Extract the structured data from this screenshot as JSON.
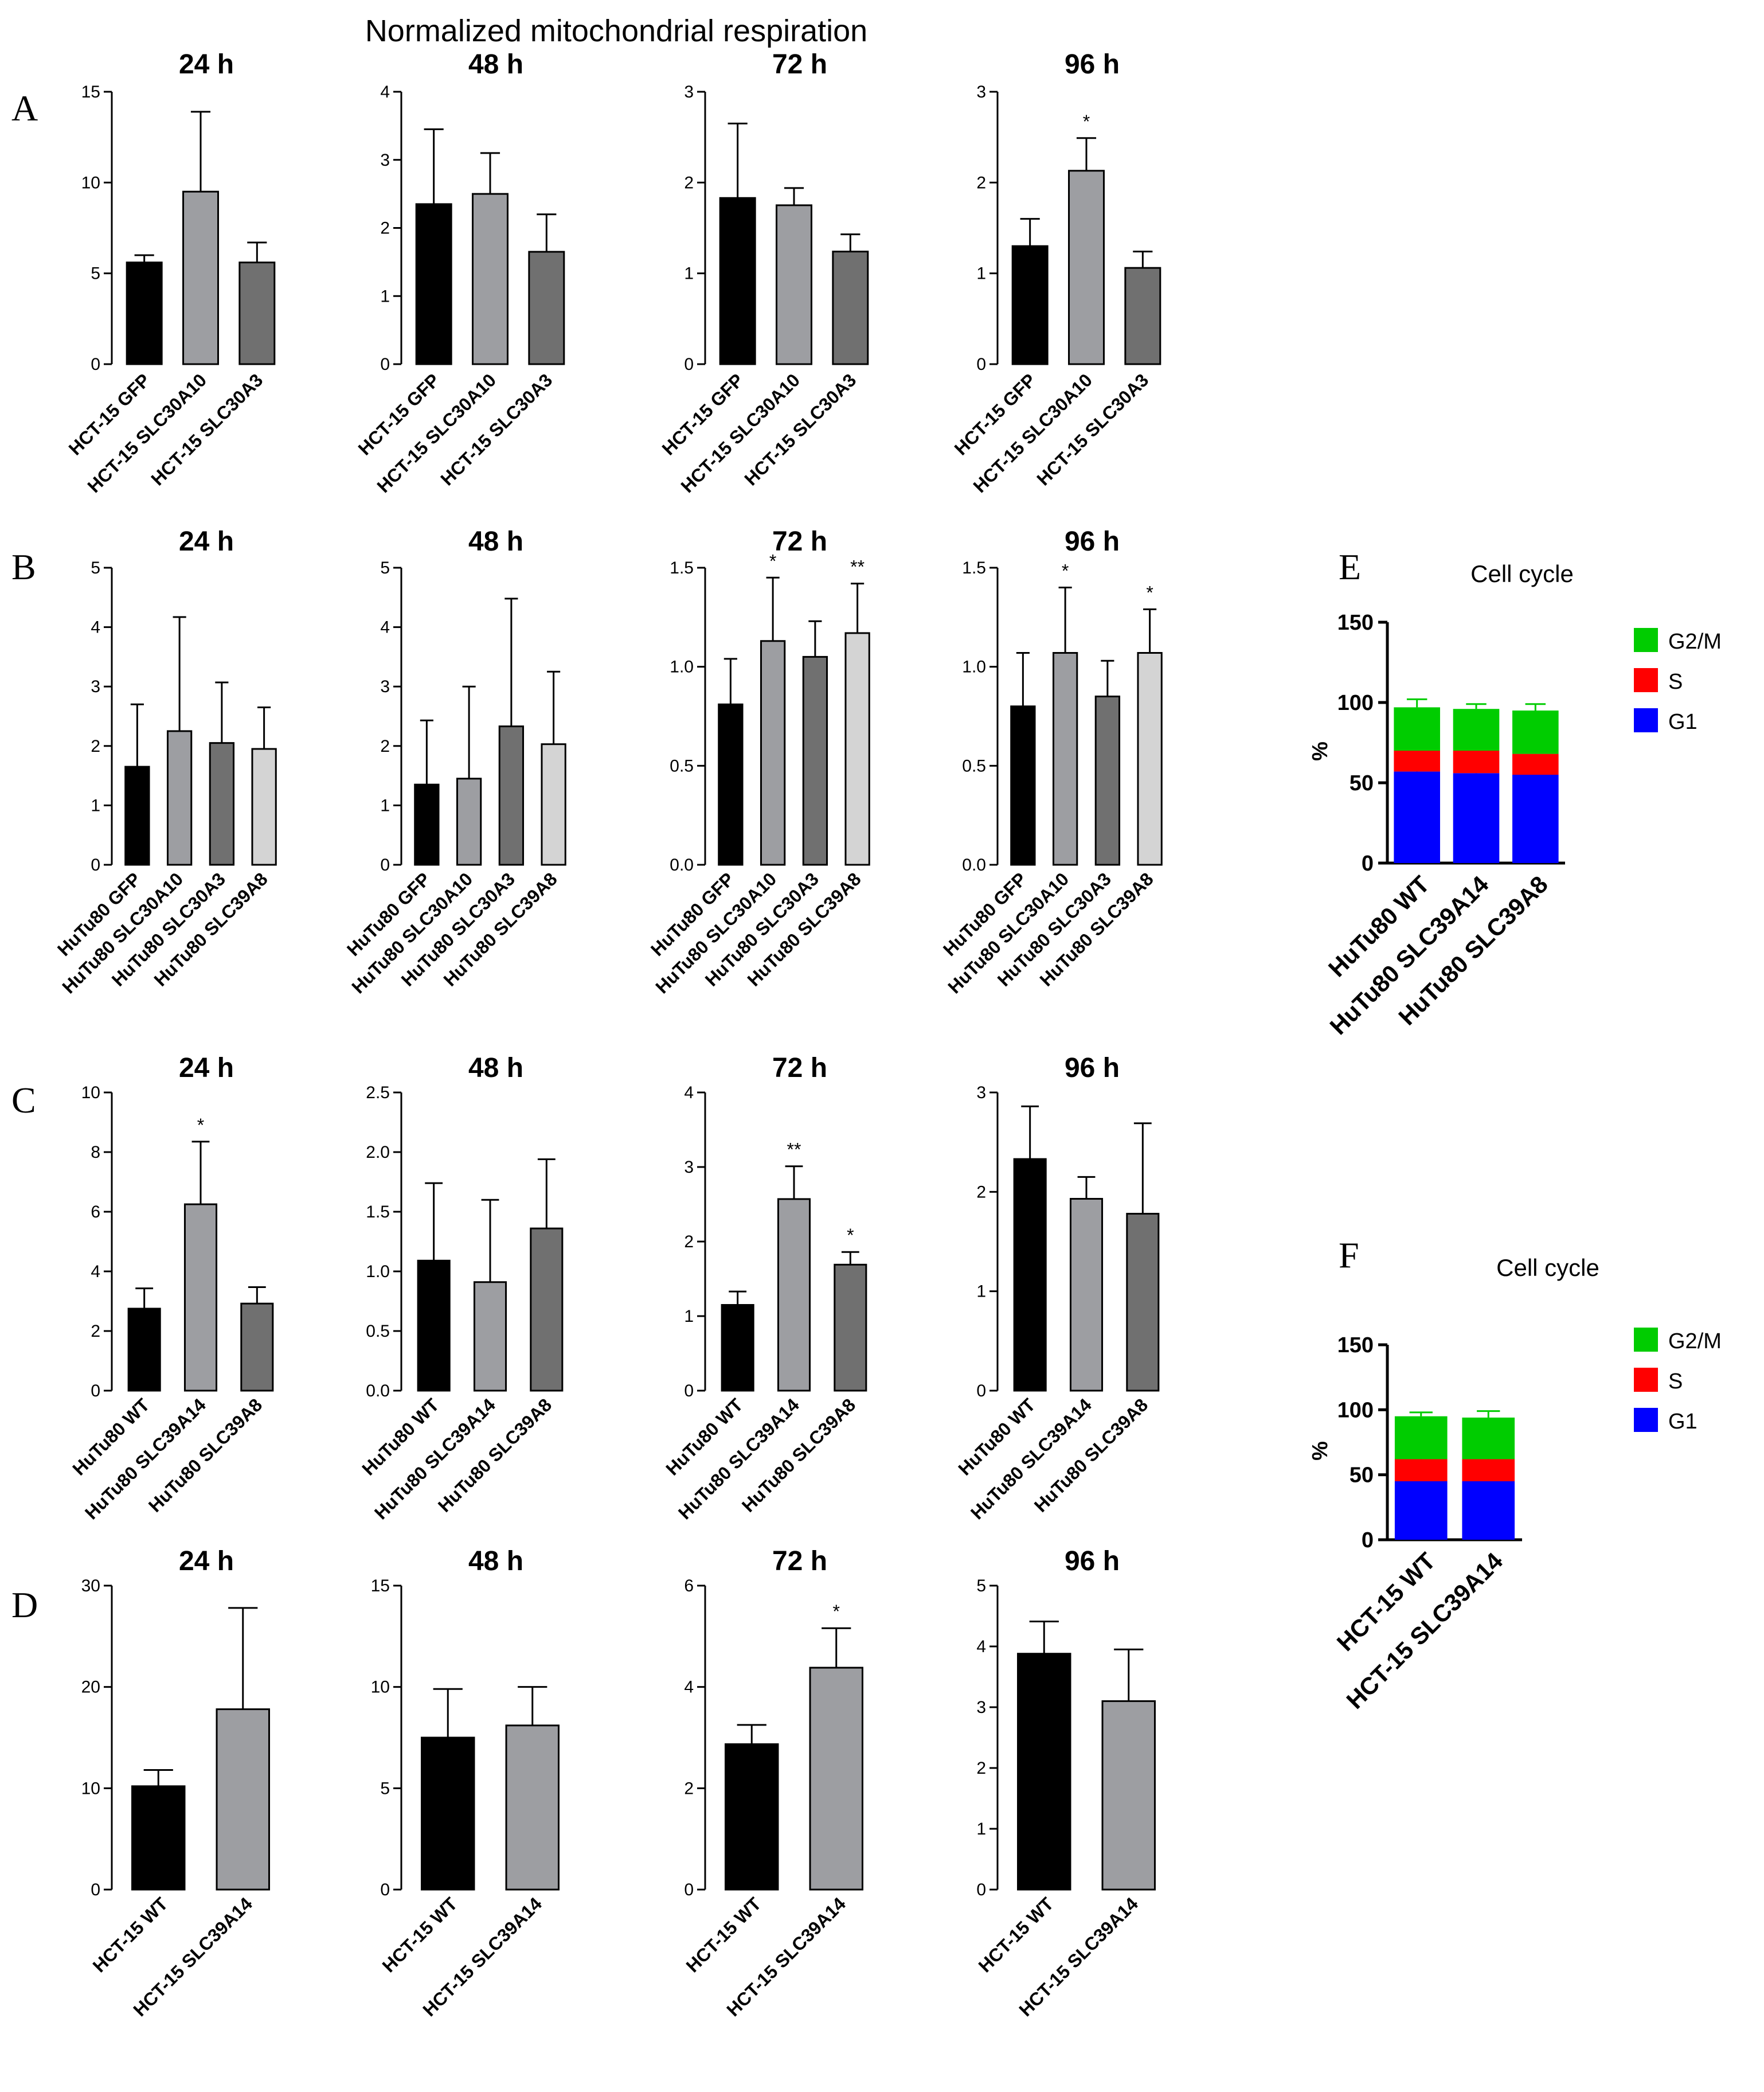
{
  "title": "Normalized mitochondrial respiration",
  "panels": [
    {
      "letter": "A",
      "x": 20,
      "y": 210
    },
    {
      "letter": "B",
      "x": 20,
      "y": 1010
    },
    {
      "letter": "C",
      "x": 20,
      "y": 1940
    },
    {
      "letter": "D",
      "x": 20,
      "y": 2820
    },
    {
      "letter": "E",
      "x": 2335,
      "y": 1010
    },
    {
      "letter": "F",
      "x": 2335,
      "y": 2210
    }
  ],
  "colors": {
    "black": "#000000",
    "gray": "#9d9ea2",
    "darkgray": "#707070",
    "lightgray": "#d4d4d4",
    "g2m": "#00cc00",
    "s": "#ff0000",
    "g1": "#0000ff"
  },
  "chart_data": [
    {
      "id": "A24",
      "type": "bar",
      "title": "24 h",
      "ylim": [
        0,
        15
      ],
      "yticks": [
        0,
        5,
        10,
        15
      ],
      "categories": [
        "HCT-15 GFP",
        "HCT-15 SLC30A10",
        "HCT-15 SLC30A3"
      ],
      "values": [
        5.6,
        9.5,
        5.6
      ],
      "errors": [
        0.4,
        4.4,
        1.1
      ],
      "sig": [
        "",
        "",
        ""
      ],
      "colors": [
        "black",
        "gray",
        "darkgray"
      ]
    },
    {
      "id": "A48",
      "type": "bar",
      "title": "48 h",
      "ylim": [
        0,
        4
      ],
      "yticks": [
        0,
        1,
        2,
        3,
        4
      ],
      "categories": [
        "HCT-15 GFP",
        "HCT-15 SLC30A10",
        "HCT-15 SLC30A3"
      ],
      "values": [
        2.35,
        2.5,
        1.65
      ],
      "errors": [
        1.1,
        0.6,
        0.55
      ],
      "sig": [
        "",
        "",
        ""
      ],
      "colors": [
        "black",
        "gray",
        "darkgray"
      ]
    },
    {
      "id": "A72",
      "type": "bar",
      "title": "72 h",
      "ylim": [
        0,
        3
      ],
      "yticks": [
        0,
        1,
        2,
        3
      ],
      "categories": [
        "HCT-15 GFP",
        "HCT-15 SLC30A10",
        "HCT-15 SLC30A3"
      ],
      "values": [
        1.83,
        1.75,
        1.24
      ],
      "errors": [
        0.82,
        0.19,
        0.19
      ],
      "sig": [
        "",
        "",
        ""
      ],
      "colors": [
        "black",
        "gray",
        "darkgray"
      ]
    },
    {
      "id": "A96",
      "type": "bar",
      "title": "96 h",
      "ylim": [
        0,
        3
      ],
      "yticks": [
        0,
        1,
        2,
        3
      ],
      "categories": [
        "HCT-15 GFP",
        "HCT-15 SLC30A10",
        "HCT-15 SLC30A3"
      ],
      "values": [
        1.3,
        2.13,
        1.06
      ],
      "errors": [
        0.3,
        0.36,
        0.18
      ],
      "sig": [
        "",
        "*",
        ""
      ],
      "colors": [
        "black",
        "gray",
        "darkgray"
      ]
    },
    {
      "id": "B24",
      "type": "bar",
      "title": "24 h",
      "ylim": [
        0,
        5
      ],
      "yticks": [
        0,
        1,
        2,
        3,
        4,
        5
      ],
      "categories": [
        "HuTu80 GFP",
        "HuTu80 SLC30A10",
        "HuTu80 SLC30A3",
        "HuTu80 SLC39A8"
      ],
      "values": [
        1.65,
        2.25,
        2.05,
        1.95
      ],
      "errors": [
        1.05,
        1.92,
        1.02,
        0.7
      ],
      "sig": [
        "",
        "",
        "",
        ""
      ],
      "colors": [
        "black",
        "gray",
        "darkgray",
        "lightgray"
      ]
    },
    {
      "id": "B48",
      "type": "bar",
      "title": "48 h",
      "ylim": [
        0,
        5
      ],
      "yticks": [
        0,
        1,
        2,
        3,
        4,
        5
      ],
      "categories": [
        "HuTu80 GFP",
        "HuTu80 SLC30A10",
        "HuTu80 SLC30A3",
        "HuTu80 SLC39A8"
      ],
      "values": [
        1.35,
        1.45,
        2.33,
        2.03
      ],
      "errors": [
        1.08,
        1.55,
        2.15,
        1.22
      ],
      "sig": [
        "",
        "",
        "",
        ""
      ],
      "colors": [
        "black",
        "gray",
        "darkgray",
        "lightgray"
      ]
    },
    {
      "id": "B72",
      "type": "bar",
      "title": "72 h",
      "ylim": [
        0,
        1.5
      ],
      "yticks": [
        0.0,
        0.5,
        1.0,
        1.5
      ],
      "decimals": 1,
      "categories": [
        "HuTu80 GFP",
        "HuTu80 SLC30A10",
        "HuTu80 SLC30A3",
        "HuTu80 SLC39A8"
      ],
      "values": [
        0.81,
        1.13,
        1.05,
        1.17
      ],
      "errors": [
        0.23,
        0.32,
        0.18,
        0.25
      ],
      "sig": [
        "",
        "*",
        "",
        "**"
      ],
      "colors": [
        "black",
        "gray",
        "darkgray",
        "lightgray"
      ]
    },
    {
      "id": "B96",
      "type": "bar",
      "title": "96 h",
      "ylim": [
        0,
        1.5
      ],
      "yticks": [
        0.0,
        0.5,
        1.0,
        1.5
      ],
      "decimals": 1,
      "categories": [
        "HuTu80 GFP",
        "HuTu80 SLC30A10",
        "HuTu80 SLC30A3",
        "HuTu80 SLC39A8"
      ],
      "values": [
        0.8,
        1.07,
        0.85,
        1.07
      ],
      "errors": [
        0.27,
        0.33,
        0.18,
        0.22
      ],
      "sig": [
        "",
        "*",
        "",
        "*"
      ],
      "colors": [
        "black",
        "gray",
        "darkgray",
        "lightgray"
      ]
    },
    {
      "id": "C24",
      "type": "bar",
      "title": "24 h",
      "ylim": [
        0,
        10
      ],
      "yticks": [
        0,
        2,
        4,
        6,
        8,
        10
      ],
      "categories": [
        "HuTu80 WT",
        "HuTu80 SLC39A14",
        "HuTu80 SLC39A8"
      ],
      "values": [
        2.75,
        6.25,
        2.92
      ],
      "errors": [
        0.68,
        2.1,
        0.55
      ],
      "sig": [
        "",
        "*",
        ""
      ],
      "colors": [
        "black",
        "gray",
        "darkgray"
      ]
    },
    {
      "id": "C48",
      "type": "bar",
      "title": "48 h",
      "ylim": [
        0,
        2.5
      ],
      "yticks": [
        0.0,
        0.5,
        1.0,
        1.5,
        2.0,
        2.5
      ],
      "decimals": 1,
      "categories": [
        "HuTu80 WT",
        "HuTu80 SLC39A14",
        "HuTu80 SLC39A8"
      ],
      "values": [
        1.09,
        0.91,
        1.36
      ],
      "errors": [
        0.65,
        0.69,
        0.58
      ],
      "sig": [
        "",
        "",
        ""
      ],
      "colors": [
        "black",
        "gray",
        "darkgray"
      ]
    },
    {
      "id": "C72",
      "type": "bar",
      "title": "72 h",
      "ylim": [
        0,
        4
      ],
      "yticks": [
        0,
        1,
        2,
        3,
        4
      ],
      "categories": [
        "HuTu80 WT",
        "HuTu80 SLC39A14",
        "HuTu80 SLC39A8"
      ],
      "values": [
        1.15,
        2.57,
        1.69
      ],
      "errors": [
        0.18,
        0.44,
        0.17
      ],
      "sig": [
        "",
        "**",
        "*"
      ],
      "colors": [
        "black",
        "gray",
        "darkgray"
      ]
    },
    {
      "id": "C96",
      "type": "bar",
      "title": "96 h",
      "ylim": [
        0,
        3
      ],
      "yticks": [
        0,
        1,
        2,
        3
      ],
      "categories": [
        "HuTu80 WT",
        "HuTu80 SLC39A14",
        "HuTu80 SLC39A8"
      ],
      "values": [
        2.33,
        1.93,
        1.78
      ],
      "errors": [
        0.53,
        0.22,
        0.91
      ],
      "sig": [
        "",
        "",
        ""
      ],
      "colors": [
        "black",
        "gray",
        "darkgray"
      ]
    },
    {
      "id": "D24",
      "type": "bar",
      "title": "24 h",
      "ylim": [
        0,
        30
      ],
      "yticks": [
        0,
        10,
        20,
        30
      ],
      "categories": [
        "HCT-15 WT",
        "HCT-15 SLC39A14"
      ],
      "values": [
        10.2,
        17.8
      ],
      "errors": [
        1.6,
        10.0
      ],
      "sig": [
        "",
        ""
      ],
      "colors": [
        "black",
        "gray"
      ]
    },
    {
      "id": "D48",
      "type": "bar",
      "title": "48 h",
      "ylim": [
        0,
        15
      ],
      "yticks": [
        0,
        5,
        10,
        15
      ],
      "categories": [
        "HCT-15 WT",
        "HCT-15 SLC39A14"
      ],
      "values": [
        7.5,
        8.1
      ],
      "errors": [
        2.4,
        1.9
      ],
      "sig": [
        "",
        ""
      ],
      "colors": [
        "black",
        "gray"
      ]
    },
    {
      "id": "D72",
      "type": "bar",
      "title": "72 h",
      "ylim": [
        0,
        6
      ],
      "yticks": [
        0,
        2,
        4,
        6
      ],
      "categories": [
        "HCT-15 WT",
        "HCT-15 SLC39A14"
      ],
      "values": [
        2.87,
        4.38
      ],
      "errors": [
        0.38,
        0.78
      ],
      "sig": [
        "",
        "*"
      ],
      "colors": [
        "black",
        "gray"
      ]
    },
    {
      "id": "D96",
      "type": "bar",
      "title": "96 h",
      "ylim": [
        0,
        5
      ],
      "yticks": [
        0,
        1,
        2,
        3,
        4,
        5
      ],
      "categories": [
        "HCT-15 WT",
        "HCT-15 SLC39A14"
      ],
      "values": [
        3.88,
        3.1
      ],
      "errors": [
        0.53,
        0.85
      ],
      "sig": [
        "",
        ""
      ],
      "colors": [
        "black",
        "gray"
      ]
    },
    {
      "id": "E",
      "type": "stacked-bar",
      "title": "Cell cycle",
      "ylabel": "%",
      "ylim": [
        0,
        150
      ],
      "yticks": [
        0,
        50,
        100,
        150
      ],
      "categories": [
        "HuTu80 WT",
        "HuTu80 SLC39A14",
        "HuTu80 SLC39A8"
      ],
      "series": [
        {
          "name": "G1",
          "color": "g1",
          "values": [
            57,
            56,
            55
          ],
          "errors": [
            4,
            3,
            4
          ]
        },
        {
          "name": "S",
          "color": "s",
          "values": [
            13,
            14,
            13
          ],
          "errors": [
            3,
            2,
            3
          ]
        },
        {
          "name": "G2/M",
          "color": "g2m",
          "values": [
            27,
            26,
            27
          ],
          "errors": [
            5,
            3,
            4
          ]
        }
      ]
    },
    {
      "id": "F",
      "type": "stacked-bar",
      "title": "Cell cycle",
      "ylabel": "%",
      "ylim": [
        0,
        150
      ],
      "yticks": [
        0,
        50,
        100,
        150
      ],
      "categories": [
        "HCT-15 WT",
        "HCT-15 SLC39A14"
      ],
      "series": [
        {
          "name": "G1",
          "color": "g1",
          "values": [
            45,
            45
          ],
          "errors": [
            7,
            7
          ]
        },
        {
          "name": "S",
          "color": "s",
          "values": [
            17,
            17
          ],
          "errors": [
            7,
            7
          ]
        },
        {
          "name": "G2/M",
          "color": "g2m",
          "values": [
            33,
            32
          ],
          "errors": [
            3,
            5
          ]
        }
      ]
    }
  ]
}
